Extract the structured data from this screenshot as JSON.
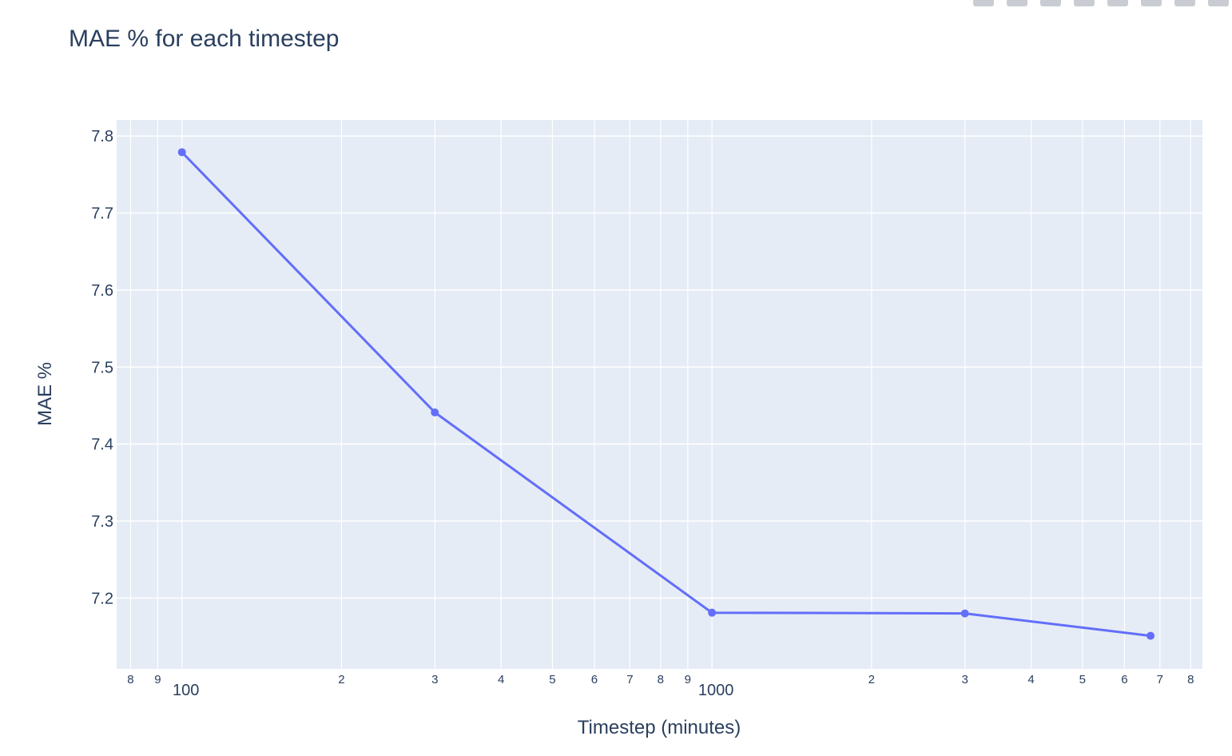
{
  "modebar": {
    "buttons": [
      "camera-icon",
      "zoom-icon",
      "pan-icon",
      "box-select-icon",
      "lasso-icon",
      "zoom-in-icon",
      "zoom-out-icon",
      "autoscale-icon"
    ]
  },
  "chart_data": {
    "type": "line",
    "title": "MAE % for each timestep",
    "xlabel": "Timestep (minutes)",
    "ylabel": "MAE %",
    "x_scale": "log",
    "xlim": [
      75.3,
      8420
    ],
    "ylim": [
      7.108,
      7.821
    ],
    "grid": true,
    "legend": "none",
    "colors": {
      "line": "#636efa",
      "plot_background": "#e5ecf6",
      "grid": "#ffffff",
      "text": "#2a3f5f"
    },
    "y_ticks": [
      7.2,
      7.3,
      7.4,
      7.5,
      7.6,
      7.7,
      7.8
    ],
    "y_tick_labels": [
      "7.2",
      "7.3",
      "7.4",
      "7.5",
      "7.6",
      "7.7",
      "7.8"
    ],
    "x_major_ticks": [
      100,
      1000
    ],
    "x_major_labels": [
      "100",
      "1000"
    ],
    "x_minor_ticks": [
      80,
      90,
      200,
      300,
      400,
      500,
      600,
      700,
      800,
      900,
      2000,
      3000,
      4000,
      5000,
      6000,
      7000,
      8000
    ],
    "x_minor_labels": [
      "8",
      "9",
      "2",
      "3",
      "4",
      "5",
      "6",
      "7",
      "8",
      "9",
      "2",
      "3",
      "4",
      "5",
      "6",
      "7",
      "8"
    ],
    "series": [
      {
        "x": [
          100,
          300,
          1000,
          3000,
          6720
        ],
        "y": [
          7.779,
          7.441,
          7.181,
          7.18,
          7.151
        ]
      }
    ]
  }
}
